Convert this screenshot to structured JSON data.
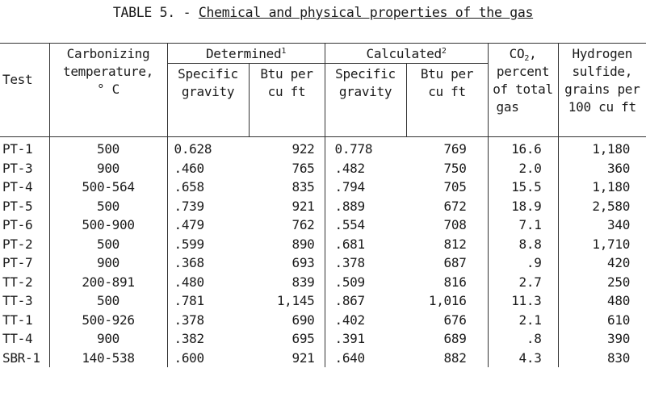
{
  "title": {
    "prefix": "TABLE 5. - ",
    "main": "Chemical and physical properties of the gas"
  },
  "header": {
    "test": "Test",
    "carbonizing": [
      "Carbonizing",
      "temperature,",
      "° C"
    ],
    "determined": "Determined",
    "determined_sup": "1",
    "calculated": "Calculated",
    "calculated_sup": "2",
    "sg": [
      "Specific",
      "gravity"
    ],
    "btu": [
      "Btu per",
      "cu ft"
    ],
    "co2_main": "CO",
    "co2_sub": "2",
    "co2_rest": ",",
    "co2_lines": [
      "percent",
      "of total",
      "gas"
    ],
    "h2s": [
      "Hydrogen",
      "sulfide,",
      "grains per",
      "100 cu ft"
    ]
  },
  "rows": [
    {
      "test": "PT-1",
      "temp": "500",
      "det_sg": "0.628",
      "det_btu": "922",
      "calc_sg": "0.778",
      "calc_btu": "769",
      "co2": "16.6",
      "h2s": "1,180"
    },
    {
      "test": "PT-3",
      "temp": "900",
      "det_sg": ".460",
      "det_btu": "765",
      "calc_sg": ".482",
      "calc_btu": "750",
      "co2": "2.0",
      "h2s": "360"
    },
    {
      "test": "PT-4",
      "temp": "500-564",
      "det_sg": ".658",
      "det_btu": "835",
      "calc_sg": ".794",
      "calc_btu": "705",
      "co2": "15.5",
      "h2s": "1,180"
    },
    {
      "test": "PT-5",
      "temp": "500",
      "det_sg": ".739",
      "det_btu": "921",
      "calc_sg": ".889",
      "calc_btu": "672",
      "co2": "18.9",
      "h2s": "2,580"
    },
    {
      "test": "PT-6",
      "temp": "500-900",
      "det_sg": ".479",
      "det_btu": "762",
      "calc_sg": ".554",
      "calc_btu": "708",
      "co2": "7.1",
      "h2s": "340"
    },
    {
      "test": "PT-2",
      "temp": "500",
      "det_sg": ".599",
      "det_btu": "890",
      "calc_sg": ".681",
      "calc_btu": "812",
      "co2": "8.8",
      "h2s": "1,710"
    },
    {
      "test": "PT-7",
      "temp": "900",
      "det_sg": ".368",
      "det_btu": "693",
      "calc_sg": ".378",
      "calc_btu": "687",
      "co2": ".9",
      "h2s": "420"
    },
    {
      "test": "TT-2",
      "temp": "200-891",
      "det_sg": ".480",
      "det_btu": "839",
      "calc_sg": ".509",
      "calc_btu": "816",
      "co2": "2.7",
      "h2s": "250"
    },
    {
      "test": "TT-3",
      "temp": "500",
      "det_sg": ".781",
      "det_btu": "1,145",
      "calc_sg": ".867",
      "calc_btu": "1,016",
      "co2": "11.3",
      "h2s": "480"
    },
    {
      "test": "TT-1",
      "temp": "500-926",
      "det_sg": ".378",
      "det_btu": "690",
      "calc_sg": ".402",
      "calc_btu": "676",
      "co2": "2.1",
      "h2s": "610"
    },
    {
      "test": "TT-4",
      "temp": "900",
      "det_sg": ".382",
      "det_btu": "695",
      "calc_sg": ".391",
      "calc_btu": "689",
      "co2": ".8",
      "h2s": "390"
    },
    {
      "test": "SBR-1",
      "temp": "140-538",
      "det_sg": ".600",
      "det_btu": "921",
      "calc_sg": ".640",
      "calc_btu": "882",
      "co2": "4.3",
      "h2s": "830"
    }
  ]
}
